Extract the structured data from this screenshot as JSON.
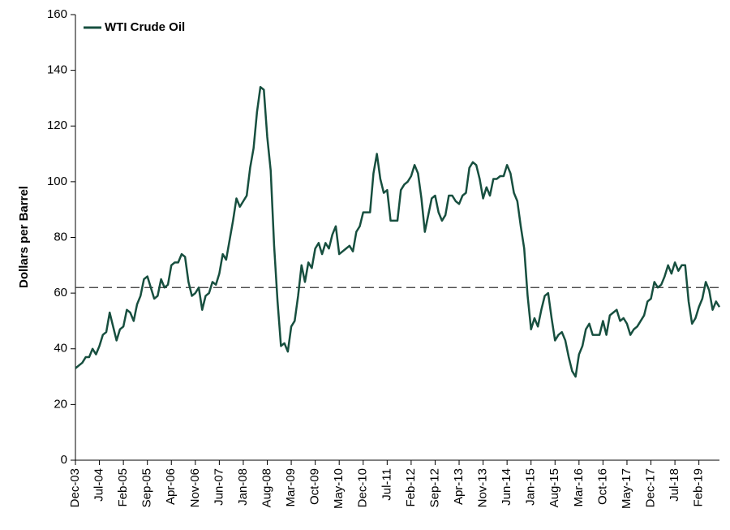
{
  "chart_data": {
    "type": "line",
    "legend_position": "upper left",
    "ylabel": "Dollars per Barrel",
    "categories": [
      "Dec-03",
      null,
      null,
      null,
      null,
      null,
      null,
      "Jul-04",
      null,
      null,
      null,
      null,
      null,
      null,
      "Feb-05",
      null,
      null,
      null,
      null,
      null,
      null,
      "Sep-05",
      null,
      null,
      null,
      null,
      null,
      null,
      "Apr-06",
      null,
      null,
      null,
      null,
      null,
      null,
      "Nov-06",
      null,
      null,
      null,
      null,
      null,
      null,
      "Jun-07",
      null,
      null,
      null,
      null,
      null,
      null,
      "Jan-08",
      null,
      null,
      null,
      null,
      null,
      null,
      "Aug-08",
      null,
      null,
      null,
      null,
      null,
      null,
      "Mar-09",
      null,
      null,
      null,
      null,
      null,
      null,
      "Oct-09",
      null,
      null,
      null,
      null,
      null,
      null,
      "May-10",
      null,
      null,
      null,
      null,
      null,
      null,
      "Dec-10",
      null,
      null,
      null,
      null,
      null,
      null,
      "Jul-11",
      null,
      null,
      null,
      null,
      null,
      null,
      "Feb-12",
      null,
      null,
      null,
      null,
      null,
      null,
      "Sep-12",
      null,
      null,
      null,
      null,
      null,
      null,
      "Apr-13",
      null,
      null,
      null,
      null,
      null,
      null,
      "Nov-13",
      null,
      null,
      null,
      null,
      null,
      null,
      "Jun-14",
      null,
      null,
      null,
      null,
      null,
      null,
      "Jan-15",
      null,
      null,
      null,
      null,
      null,
      null,
      "Aug-15",
      null,
      null,
      null,
      null,
      null,
      null,
      "Mar-16",
      null,
      null,
      null,
      null,
      null,
      null,
      "Oct-16",
      null,
      null,
      null,
      null,
      null,
      null,
      "May-17",
      null,
      null,
      null,
      null,
      null,
      null,
      "Dec-17",
      null,
      null,
      null,
      null,
      null,
      null,
      "Jul-18",
      null,
      null,
      null,
      null,
      null,
      null,
      "Feb-19",
      null,
      null,
      null,
      null,
      null,
      null
    ],
    "series": [
      {
        "name": "WTI Crude Oil",
        "color": "#174f3f",
        "values": [
          33,
          34,
          35,
          37,
          37,
          40,
          38,
          41,
          45,
          46,
          53,
          48,
          43,
          47,
          48,
          54,
          53,
          50,
          56,
          59,
          65,
          66,
          62,
          58,
          59,
          65,
          62,
          63,
          70,
          71,
          71,
          74,
          73,
          64,
          59,
          60,
          62,
          54,
          59,
          60,
          64,
          63,
          67,
          74,
          72,
          79,
          86,
          94,
          91,
          93,
          95,
          105,
          112,
          125,
          134,
          133,
          116,
          104,
          77,
          57,
          41,
          42,
          39,
          48,
          50,
          59,
          70,
          64,
          71,
          69,
          76,
          78,
          74,
          78,
          76,
          81,
          84,
          74,
          75,
          76,
          77,
          75,
          82,
          84,
          89,
          89,
          89,
          103,
          110,
          101,
          96,
          97,
          86,
          86,
          86,
          97,
          99,
          100,
          102,
          106,
          103,
          94,
          82,
          88,
          94,
          95,
          89,
          86,
          88,
          95,
          95,
          93,
          92,
          95,
          96,
          105,
          107,
          106,
          101,
          94,
          98,
          95,
          101,
          101,
          102,
          102,
          106,
          103,
          96,
          93,
          84,
          76,
          59,
          47,
          51,
          48,
          54,
          59,
          60,
          51,
          43,
          45,
          46,
          43,
          37,
          32,
          30,
          38,
          41,
          47,
          49,
          45,
          45,
          45,
          50,
          45,
          52,
          53,
          54,
          50,
          51,
          49,
          45,
          47,
          48,
          50,
          52,
          57,
          58,
          64,
          62,
          63,
          66,
          70,
          67,
          71,
          68,
          70,
          70,
          57,
          49,
          51,
          55,
          58,
          64,
          61,
          54,
          57,
          55
        ]
      }
    ],
    "reference_line": {
      "value": 62,
      "color": "#333333",
      "dashed": true
    },
    "ylim": [
      0,
      160
    ],
    "yticks": [
      0,
      20,
      40,
      60,
      80,
      100,
      120,
      140,
      160
    ]
  }
}
